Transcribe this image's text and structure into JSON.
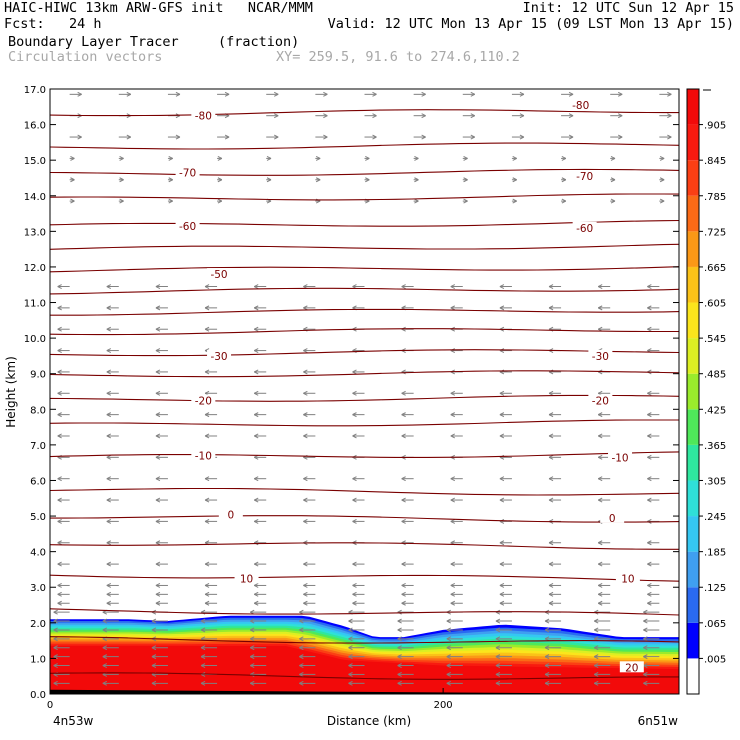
{
  "header": {
    "line1_left": "HAIC-HIWC 13km ARW-GFS init   NCAR/MMM",
    "line1_right": "Init: 12 UTC Sun 12 Apr 15",
    "line2_left": "Fcst:   24 h",
    "line2_right": "Valid: 12 UTC Mon 13 Apr 15 (09 LST Mon 13 Apr 15)",
    "field_name": "Boundary Layer Tracer",
    "field_units": "(fraction)",
    "overlay_name": "Circulation vectors",
    "xy_range": "XY= 259.5, 91.6 to 274.6,110.2"
  },
  "colors": {
    "contour": "#7a0000",
    "vector": "#808080",
    "colorbar": [
      "#ffffff",
      "#0000ff",
      "#2a6af0",
      "#3f9ff0",
      "#35c7f2",
      "#2fe0d8",
      "#2fe79f",
      "#4fe85a",
      "#9aeb2c",
      "#dcef23",
      "#fbe51c",
      "#fbc218",
      "#fb9816",
      "#fb6a16",
      "#fb3f14",
      "#f81a10",
      "#f20a0a"
    ]
  },
  "chart_data": {
    "type": "cross-section",
    "title": "Boundary Layer Tracer",
    "units": "(fraction)",
    "xlabel": "Distance (km)",
    "ylabel": "Height (km)",
    "xlim": [
      0,
      320
    ],
    "ylim": [
      0.0,
      17.0
    ],
    "x_ticks": [
      0,
      200
    ],
    "y_ticks": [
      "0.0",
      "1.0",
      "2.0",
      "3.0",
      "4.0",
      "5.0",
      "6.0",
      "7.0",
      "8.0",
      "9.0",
      "10.0",
      "11.0",
      "12.0",
      "13.0",
      "14.0",
      "15.0",
      "16.0",
      "17.0"
    ],
    "x_endpoints": {
      "left": "4n53w",
      "right": "6n51w"
    },
    "colorbar_labels": [
      ".005",
      ".065",
      ".125",
      ".185",
      ".245",
      ".305",
      ".365",
      ".425",
      ".485",
      ".545",
      ".605",
      ".665",
      ".725",
      ".785",
      ".845",
      ".905"
    ],
    "tracer_top_km": [
      {
        "x": 0,
        "y": 2.1
      },
      {
        "x": 40,
        "y": 2.1
      },
      {
        "x": 60,
        "y": 2.05
      },
      {
        "x": 90,
        "y": 2.2
      },
      {
        "x": 130,
        "y": 2.2
      },
      {
        "x": 150,
        "y": 1.9
      },
      {
        "x": 165,
        "y": 1.6
      },
      {
        "x": 180,
        "y": 1.6
      },
      {
        "x": 200,
        "y": 1.8
      },
      {
        "x": 230,
        "y": 1.95
      },
      {
        "x": 260,
        "y": 1.85
      },
      {
        "x": 290,
        "y": 1.6
      },
      {
        "x": 320,
        "y": 1.6
      }
    ],
    "red_top_km": [
      {
        "x": 0,
        "y": 1.35
      },
      {
        "x": 120,
        "y": 1.35
      },
      {
        "x": 150,
        "y": 0.95
      },
      {
        "x": 200,
        "y": 0.8
      },
      {
        "x": 260,
        "y": 0.75
      },
      {
        "x": 320,
        "y": 0.7
      }
    ],
    "temperature_contour_labels": [
      {
        "value": "-80",
        "x": 78,
        "y": 16.25
      },
      {
        "value": "-80",
        "x": 270,
        "y": 16.55
      },
      {
        "value": "-70",
        "x": 70,
        "y": 14.65
      },
      {
        "value": "-70",
        "x": 272,
        "y": 14.55
      },
      {
        "value": "-60",
        "x": 70,
        "y": 13.15
      },
      {
        "value": "-60",
        "x": 272,
        "y": 13.1
      },
      {
        "value": "-50",
        "x": 86,
        "y": 11.8
      },
      {
        "value": "-30",
        "x": 86,
        "y": 9.5
      },
      {
        "value": "-30",
        "x": 280,
        "y": 9.5
      },
      {
        "value": "-20",
        "x": 78,
        "y": 8.25
      },
      {
        "value": "-20",
        "x": 280,
        "y": 8.25
      },
      {
        "value": "-10",
        "x": 78,
        "y": 6.7
      },
      {
        "value": "-10",
        "x": 290,
        "y": 6.65
      },
      {
        "value": "0",
        "x": 92,
        "y": 5.05
      },
      {
        "value": "0",
        "x": 286,
        "y": 4.95
      },
      {
        "value": "10",
        "x": 100,
        "y": 3.25
      },
      {
        "value": "10",
        "x": 294,
        "y": 3.25
      },
      {
        "value": "20",
        "x": 296,
        "y": 0.75
      }
    ],
    "contour_levels_km": [
      0.55,
      1.55,
      2.35,
      3.35,
      4.25,
      5.0,
      5.75,
      6.65,
      7.55,
      8.25,
      8.95,
      9.55,
      10.15,
      10.7,
      11.3,
      11.9,
      12.5,
      13.15,
      13.9,
      14.6,
      15.35,
      16.3
    ],
    "wind_vectors": "gray arrows; mostly easterly (pointing left) below 12 km and westerly (pointing right) near 16-17 km"
  }
}
